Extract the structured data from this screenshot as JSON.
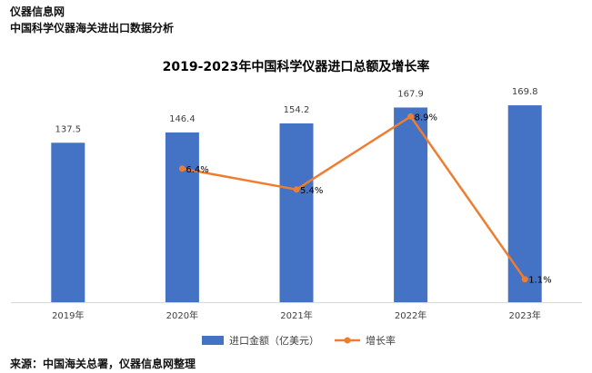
{
  "header": {
    "brand": "仪器信息网",
    "subtitle": "中国科学仪器海关进出口数据分析"
  },
  "footer": {
    "source": "来源：中国海关总署，仪器信息网整理"
  },
  "colors": {
    "bar": "#4472C4",
    "line": "#ED7D31",
    "axis": "#D9D9D9",
    "text": "#404040"
  },
  "chart_data": {
    "type": "bar",
    "title": "2019-2023年中国科学仪器进口总额及增长率",
    "categories": [
      "2019年",
      "2020年",
      "2021年",
      "2022年",
      "2023年"
    ],
    "series": [
      {
        "name": "进口金额（亿美元）",
        "type": "bar",
        "values": [
          137.5,
          146.4,
          154.2,
          167.9,
          169.8
        ],
        "labels": [
          "137.5",
          "146.4",
          "154.2",
          "167.9",
          "169.8"
        ]
      },
      {
        "name": "增长率",
        "type": "line",
        "values": [
          null,
          6.4,
          5.4,
          8.9,
          1.1
        ],
        "labels": [
          "",
          "6.4%",
          "5.4%",
          "8.9%",
          "1.1%"
        ]
      }
    ],
    "ylim_bar": [
      0,
      180
    ],
    "ylim_line": [
      0,
      10
    ],
    "legend_position": "bottom",
    "grid": false
  }
}
